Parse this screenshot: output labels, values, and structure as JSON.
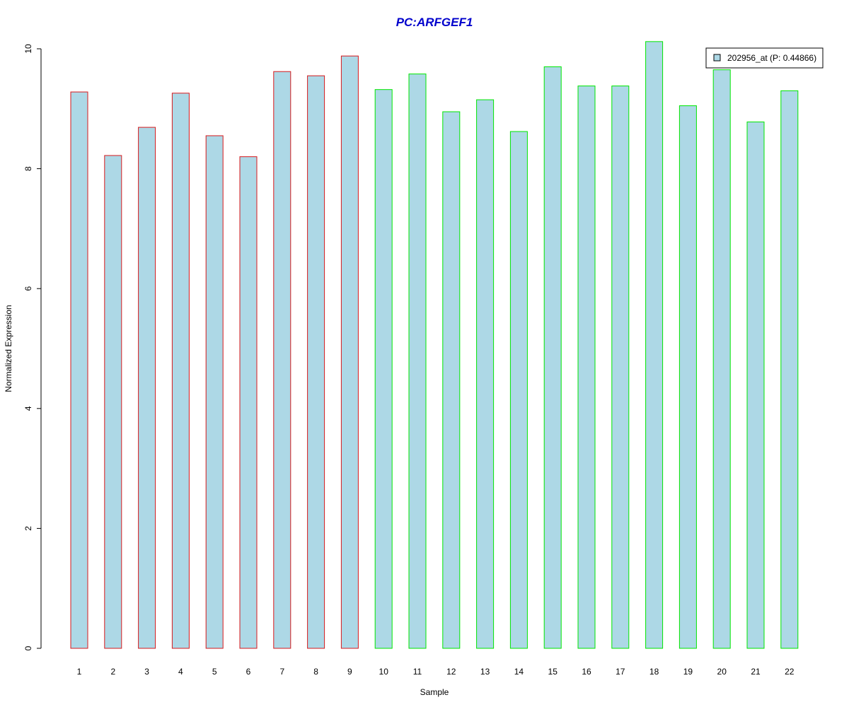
{
  "chart_data": {
    "type": "bar",
    "title": "PC:ARFGEF1",
    "xlabel": "Sample",
    "ylabel": "Normalized Expression",
    "categories": [
      "1",
      "2",
      "3",
      "4",
      "5",
      "6",
      "7",
      "8",
      "9",
      "10",
      "11",
      "12",
      "13",
      "14",
      "15",
      "16",
      "17",
      "18",
      "19",
      "20",
      "21",
      "22"
    ],
    "series": [
      {
        "name": "202956_at (P: 0.44866)",
        "values": [
          9.28,
          8.22,
          8.69,
          9.26,
          8.55,
          8.2,
          9.62,
          9.55,
          9.88,
          9.32,
          9.58,
          8.95,
          9.15,
          8.62,
          9.7,
          9.38,
          9.38,
          10.12,
          9.05,
          9.65,
          8.78,
          9.3
        ]
      }
    ],
    "groups": [
      {
        "samples": [
          1,
          2,
          3,
          4,
          5,
          6,
          7,
          8,
          9
        ],
        "border_color": "#d7191c"
      },
      {
        "samples": [
          10,
          11,
          12,
          13,
          14,
          15,
          16,
          17,
          18,
          19,
          20,
          21,
          22
        ],
        "border_color": "#00e600"
      }
    ],
    "ylim": [
      0,
      10
    ],
    "yticks": [
      0,
      2,
      4,
      6,
      8,
      10
    ],
    "grid": false,
    "legend_position": "top-right",
    "colors": {
      "bar_fill": "#add8e6",
      "title": "#0000cc",
      "axis": "#000000"
    }
  }
}
